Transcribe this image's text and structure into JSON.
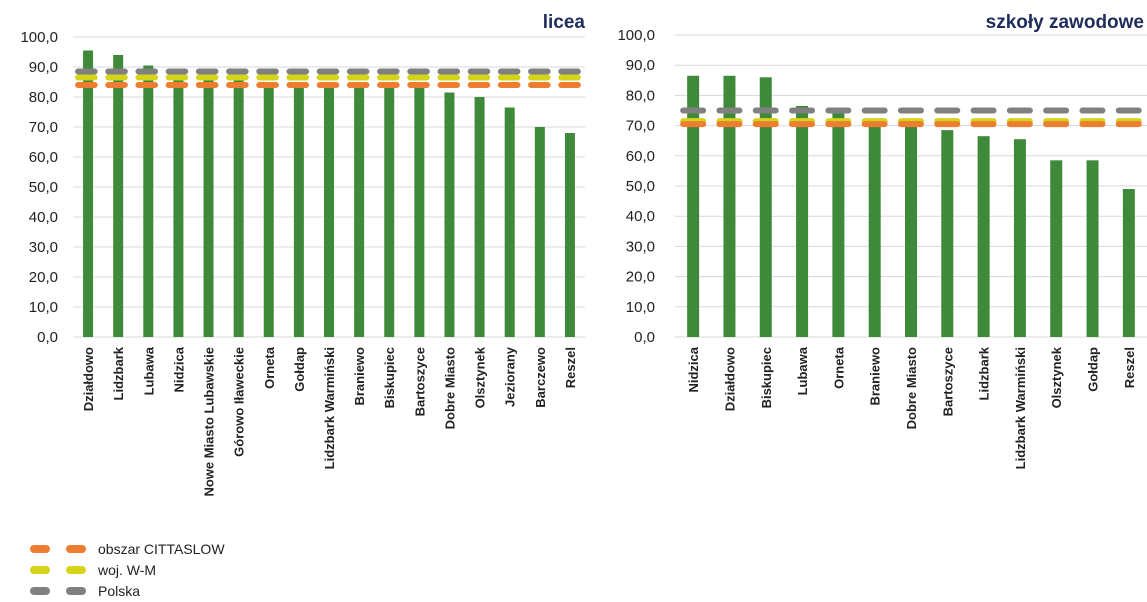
{
  "chart_data": [
    {
      "type": "bar",
      "title": "licea",
      "categories": [
        "Działdowo",
        "Lidzbark",
        "Lubawa",
        "Nidzica",
        "Nowe Miasto Lubawskie",
        "Górowo Iławeckie",
        "Orneta",
        "Gołdap",
        "Lidzbark Warmiński",
        "Braniewo",
        "Biskupiec",
        "Bartoszyce",
        "Dobre Miasto",
        "Olsztynek",
        "Jeziorany",
        "Barczewo",
        "Reszel"
      ],
      "values": [
        95.5,
        94.0,
        90.5,
        88.5,
        87.0,
        86.0,
        85.0,
        85.0,
        84.5,
        84.0,
        84.0,
        83.5,
        81.5,
        80.0,
        76.5,
        70.0,
        68.0
      ],
      "reference_lines": [
        {
          "name": "obszar CITTASLOW",
          "value": 84.0
        },
        {
          "name": "woj. W-M",
          "value": 86.5
        },
        {
          "name": "Polska",
          "value": 88.5
        }
      ],
      "ylim": [
        0,
        100
      ],
      "ytick_labels": [
        "0,0",
        "10,0",
        "20,0",
        "30,0",
        "40,0",
        "50,0",
        "60,0",
        "70,0",
        "80,0",
        "90,0",
        "100,0"
      ],
      "grid": true
    },
    {
      "type": "bar",
      "title": "szkoły zawodowe",
      "categories": [
        "Nidzica",
        "Działdowo",
        "Biskupiec",
        "Lubawa",
        "Orneta",
        "Braniewo",
        "Dobre Miasto",
        "Bartoszyce",
        "Lidzbark",
        "Lidzbark Warmiński",
        "Olsztynek",
        "Gołdap",
        "Reszel"
      ],
      "values": [
        86.5,
        86.5,
        86.0,
        76.5,
        74.0,
        71.0,
        70.5,
        68.5,
        66.5,
        65.5,
        58.5,
        58.5,
        49.0
      ],
      "reference_lines": [
        {
          "name": "obszar CITTASLOW",
          "value": 70.5
        },
        {
          "name": "woj. W-M",
          "value": 71.5
        },
        {
          "name": "Polska",
          "value": 75.0
        }
      ],
      "ylim": [
        0,
        100
      ],
      "ytick_labels": [
        "0,0",
        "10,0",
        "20,0",
        "30,0",
        "40,0",
        "50,0",
        "60,0",
        "70,0",
        "80,0",
        "90,0",
        "100,0"
      ],
      "grid": true
    }
  ],
  "colors": {
    "bar": "#3f8a3a",
    "obszar CITTASLOW": "#ed7d31",
    "woj. W-M": "#d4d41a",
    "Polska": "#808080",
    "title": "#1f2d5c",
    "grid": "#d9d9d9"
  },
  "legend": {
    "items": [
      {
        "label": "obszar CITTASLOW",
        "color": "#ed7d31"
      },
      {
        "label": "woj. W-M",
        "color": "#d4d41a"
      },
      {
        "label": "Polska",
        "color": "#808080"
      }
    ]
  }
}
